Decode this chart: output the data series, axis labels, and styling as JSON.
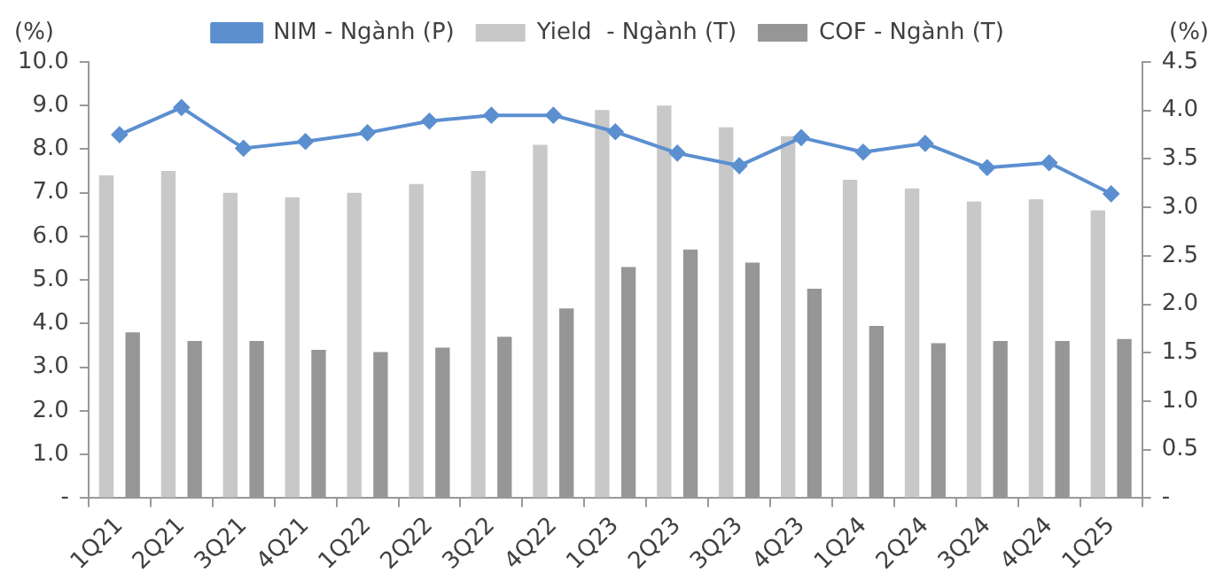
{
  "chart_data": {
    "type": "bar",
    "categories": [
      "1Q21",
      "2Q21",
      "3Q21",
      "4Q21",
      "1Q22",
      "2Q22",
      "3Q22",
      "4Q22",
      "1Q23",
      "2Q23",
      "3Q23",
      "4Q23",
      "1Q24",
      "2Q24",
      "3Q24",
      "4Q24",
      "1Q25"
    ],
    "ylabel": "(%)",
    "y2label": "(%)",
    "series": [
      {
        "name": "Yield  - Ngành (T)",
        "color": "#c8c8c8",
        "values": [
          7.4,
          7.5,
          7.0,
          6.9,
          7.0,
          7.2,
          7.5,
          8.1,
          8.9,
          9.0,
          8.5,
          8.3,
          7.3,
          7.1,
          6.8,
          6.85,
          6.6
        ]
      },
      {
        "name": "COF - Ngành (T)",
        "color": "#969696",
        "values": [
          3.8,
          3.6,
          3.6,
          3.4,
          3.35,
          3.45,
          3.7,
          4.35,
          5.3,
          5.7,
          5.4,
          4.8,
          3.95,
          3.55,
          3.6,
          3.6,
          3.65
        ]
      },
      {
        "name": "NIM - Ngành (P)",
        "type": "line",
        "axis": "y2",
        "color": "#5b8fd0",
        "values": [
          3.75,
          4.03,
          3.61,
          3.68,
          3.77,
          3.89,
          3.95,
          3.95,
          3.78,
          3.56,
          3.43,
          3.72,
          3.57,
          3.66,
          3.41,
          3.46,
          3.14
        ]
      }
    ],
    "ylim": [
      0,
      10
    ],
    "yticks": [
      {
        "value": 0,
        "label": "-"
      },
      {
        "value": 1,
        "label": "1.0"
      },
      {
        "value": 2,
        "label": "2.0"
      },
      {
        "value": 3,
        "label": "3.0"
      },
      {
        "value": 4,
        "label": "4.0"
      },
      {
        "value": 5,
        "label": "5.0"
      },
      {
        "value": 6,
        "label": "6.0"
      },
      {
        "value": 7,
        "label": "7.0"
      },
      {
        "value": 8,
        "label": "8.0"
      },
      {
        "value": 9,
        "label": "9.0"
      },
      {
        "value": 10,
        "label": "10.0"
      }
    ],
    "y2lim": [
      0,
      4.5
    ],
    "y2ticks": [
      {
        "value": 0,
        "label": "-"
      },
      {
        "value": 0.5,
        "label": "0.5"
      },
      {
        "value": 1,
        "label": "1.0"
      },
      {
        "value": 1.5,
        "label": "1.5"
      },
      {
        "value": 2,
        "label": "2.0"
      },
      {
        "value": 2.5,
        "label": "2.5"
      },
      {
        "value": 3,
        "label": "3.0"
      },
      {
        "value": 3.5,
        "label": "3.5"
      },
      {
        "value": 4,
        "label": "4.0"
      },
      {
        "value": 4.5,
        "label": "4.5"
      }
    ],
    "grid": false,
    "legend": "top",
    "marker": "diamond"
  }
}
